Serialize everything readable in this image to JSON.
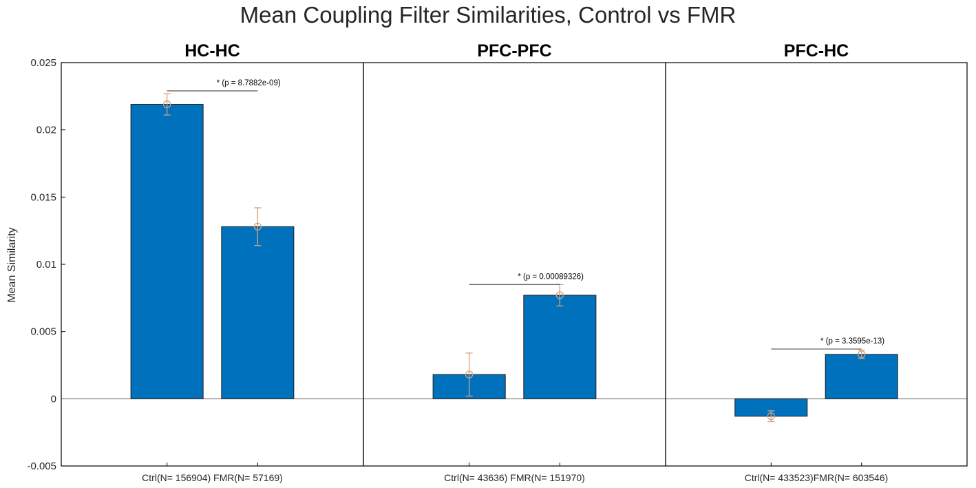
{
  "chart_data": {
    "type": "bar",
    "title": "Mean Coupling Filter Similarities, Control vs FMR",
    "ylabel": "Mean Similarity",
    "ylim": [
      -0.005,
      0.025
    ],
    "yticks": [
      -0.005,
      0,
      0.005,
      0.01,
      0.015,
      0.02,
      0.025
    ],
    "ytick_labels": [
      "-0.005",
      "0",
      "0.005",
      "0.01",
      "0.015",
      "0.02",
      "0.025"
    ],
    "colors": {
      "bar": "#0072BD",
      "bar_edge": "#1a1a1a",
      "error": "#D9A07A",
      "zero_line": "#999999",
      "frame": "#000000"
    },
    "panels": [
      {
        "name": "hc-hc",
        "title": "HC-HC",
        "xlabel": "Ctrl(N= 156904) FMR(N= 57169)",
        "series": [
          {
            "name": "Ctrl",
            "value": 0.0219,
            "err": 0.0008
          },
          {
            "name": "FMR",
            "value": 0.0128,
            "err": 0.0014
          }
        ],
        "significance": {
          "label": "* (p = 8.7882e-09)",
          "y": 0.0229
        }
      },
      {
        "name": "pfc-pfc",
        "title": "PFC-PFC",
        "xlabel": "Ctrl(N= 43636) FMR(N= 151970)",
        "series": [
          {
            "name": "Ctrl",
            "value": 0.0018,
            "err": 0.0016
          },
          {
            "name": "FMR",
            "value": 0.0077,
            "err": 0.0008
          }
        ],
        "significance": {
          "label": "* (p = 0.00089326)",
          "y": 0.0085
        }
      },
      {
        "name": "pfc-hc",
        "title": "PFC-HC",
        "xlabel": "Ctrl(N= 433523)FMR(N= 603546)",
        "series": [
          {
            "name": "Ctrl",
            "value": -0.0013,
            "err": 0.0004
          },
          {
            "name": "FMR",
            "value": 0.0033,
            "err": 0.0003
          }
        ],
        "significance": {
          "label": "* (p = 3.3595e-13)",
          "y": 0.0037
        }
      }
    ]
  }
}
